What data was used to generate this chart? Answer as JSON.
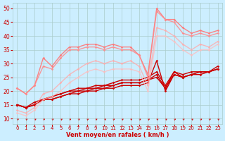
{
  "background_color": "#cceeff",
  "grid_color": "#aacccc",
  "xlabel": "Vent moyen/en rafales ( km/h )",
  "x_ticks": [
    0,
    1,
    2,
    3,
    4,
    5,
    6,
    7,
    8,
    9,
    10,
    11,
    12,
    13,
    14,
    15,
    16,
    17,
    18,
    19,
    20,
    21,
    22,
    23
  ],
  "ylim": [
    8,
    52
  ],
  "xlim": [
    -0.5,
    23.5
  ],
  "yticks": [
    10,
    15,
    20,
    25,
    30,
    35,
    40,
    45,
    50
  ],
  "series": [
    {
      "x": [
        0,
        1,
        2,
        3,
        4,
        5,
        6,
        7,
        8,
        9,
        10,
        11,
        12,
        13,
        14,
        15,
        16,
        17,
        18,
        19,
        20,
        21,
        22,
        23
      ],
      "y": [
        15,
        14,
        15,
        17,
        17,
        18,
        19,
        19,
        20,
        20,
        21,
        21,
        22,
        22,
        22,
        23,
        31,
        20,
        26,
        25,
        26,
        27,
        27,
        28
      ],
      "color": "#cc0000",
      "alpha": 1.0,
      "lw": 1.0
    },
    {
      "x": [
        0,
        1,
        2,
        3,
        4,
        5,
        6,
        7,
        8,
        9,
        10,
        11,
        12,
        13,
        14,
        15,
        16,
        17,
        18,
        19,
        20,
        21,
        22,
        23
      ],
      "y": [
        15,
        14,
        15,
        17,
        17,
        18,
        19,
        20,
        20,
        21,
        21,
        22,
        23,
        23,
        23,
        24,
        25,
        21,
        26,
        25,
        26,
        26,
        27,
        28
      ],
      "color": "#cc0000",
      "alpha": 1.0,
      "lw": 1.0
    },
    {
      "x": [
        0,
        1,
        2,
        3,
        4,
        5,
        6,
        7,
        8,
        9,
        10,
        11,
        12,
        13,
        14,
        15,
        16,
        17,
        18,
        19,
        20,
        21,
        22,
        23
      ],
      "y": [
        15,
        14,
        15,
        17,
        18,
        19,
        20,
        20,
        21,
        21,
        22,
        22,
        23,
        23,
        23,
        24,
        26,
        21,
        27,
        25,
        26,
        27,
        27,
        28
      ],
      "color": "#cc0000",
      "alpha": 1.0,
      "lw": 1.0
    },
    {
      "x": [
        0,
        1,
        2,
        3,
        4,
        5,
        6,
        7,
        8,
        9,
        10,
        11,
        12,
        13,
        14,
        15,
        16,
        17,
        18,
        19,
        20,
        21,
        22,
        23
      ],
      "y": [
        15,
        14,
        16,
        17,
        18,
        19,
        20,
        21,
        21,
        22,
        22,
        23,
        24,
        24,
        24,
        25,
        27,
        22,
        27,
        26,
        27,
        27,
        27,
        29
      ],
      "color": "#cc0000",
      "alpha": 1.0,
      "lw": 1.0
    },
    {
      "x": [
        0,
        1,
        2,
        3,
        4,
        5,
        6,
        7,
        8,
        9,
        10,
        11,
        12,
        13,
        14,
        15,
        16,
        17,
        18,
        19,
        20,
        21,
        22,
        23
      ],
      "y": [
        21,
        19,
        22,
        32,
        29,
        33,
        36,
        36,
        37,
        37,
        36,
        37,
        36,
        36,
        33,
        26,
        50,
        46,
        46,
        43,
        41,
        42,
        41,
        42
      ],
      "color": "#ff7777",
      "alpha": 0.9,
      "lw": 1.0
    },
    {
      "x": [
        0,
        1,
        2,
        3,
        4,
        5,
        6,
        7,
        8,
        9,
        10,
        11,
        12,
        13,
        14,
        15,
        16,
        17,
        18,
        19,
        20,
        21,
        22,
        23
      ],
      "y": [
        21,
        19,
        22,
        29,
        28,
        32,
        35,
        35,
        36,
        36,
        35,
        36,
        35,
        35,
        33,
        25,
        49,
        46,
        45,
        41,
        40,
        41,
        40,
        41
      ],
      "color": "#ff8888",
      "alpha": 0.85,
      "lw": 1.0
    },
    {
      "x": [
        0,
        1,
        2,
        3,
        4,
        5,
        6,
        7,
        8,
        9,
        10,
        11,
        12,
        13,
        14,
        15,
        16,
        17,
        18,
        19,
        20,
        21,
        22,
        23
      ],
      "y": [
        13,
        12,
        14,
        19,
        20,
        23,
        26,
        28,
        30,
        31,
        30,
        31,
        30,
        31,
        29,
        22,
        43,
        42,
        40,
        37,
        35,
        37,
        36,
        38
      ],
      "color": "#ffaaaa",
      "alpha": 0.8,
      "lw": 1.0
    },
    {
      "x": [
        0,
        1,
        2,
        3,
        4,
        5,
        6,
        7,
        8,
        9,
        10,
        11,
        12,
        13,
        14,
        15,
        16,
        17,
        18,
        19,
        20,
        21,
        22,
        23
      ],
      "y": [
        12,
        11,
        13,
        17,
        18,
        20,
        23,
        25,
        27,
        28,
        27,
        28,
        28,
        28,
        27,
        20,
        40,
        40,
        38,
        35,
        33,
        35,
        35,
        37
      ],
      "color": "#ffbbbb",
      "alpha": 0.75,
      "lw": 1.0
    }
  ],
  "arrow_color": "#cc0000",
  "wind_arrows_x": [
    0,
    1,
    2,
    3,
    4,
    5,
    6,
    7,
    8,
    9,
    10,
    11,
    12,
    13,
    14,
    15,
    16,
    17,
    18,
    19,
    20,
    21,
    22,
    23
  ]
}
